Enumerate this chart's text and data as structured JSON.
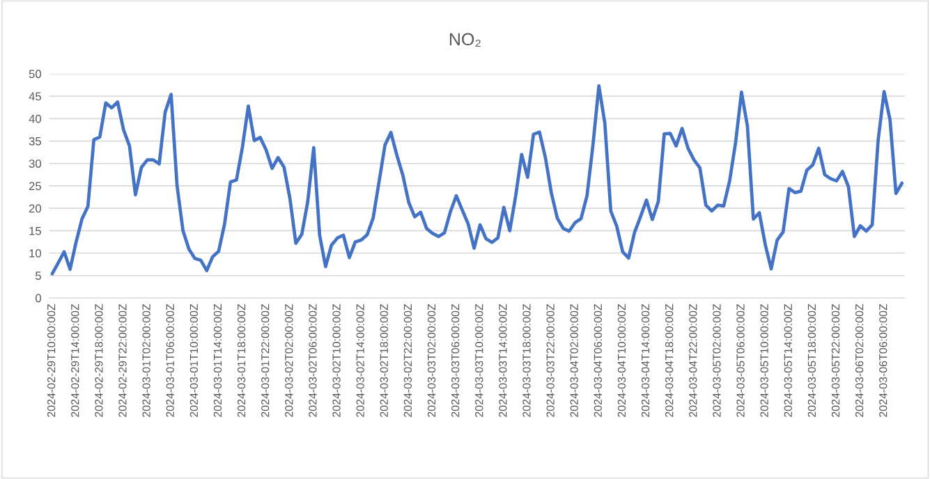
{
  "chart_data": {
    "type": "line",
    "title": "NO₂",
    "categories": [
      "2024-02-29T10:00:00Z",
      null,
      null,
      null,
      "2024-02-29T14:00:00Z",
      null,
      null,
      null,
      "2024-02-29T18:00:00Z",
      null,
      null,
      null,
      "2024-02-29T22:00:00Z",
      null,
      null,
      null,
      "2024-03-01T02:00:00Z",
      null,
      null,
      null,
      "2024-03-01T06:00:00Z",
      null,
      null,
      null,
      "2024-03-01T10:00:00Z",
      null,
      null,
      null,
      "2024-03-01T14:00:00Z",
      null,
      null,
      null,
      "2024-03-01T18:00:00Z",
      null,
      null,
      null,
      "2024-03-01T22:00:00Z",
      null,
      null,
      null,
      "2024-03-02T02:00:00Z",
      null,
      null,
      null,
      "2024-03-02T06:00:00Z",
      null,
      null,
      null,
      "2024-03-02T10:00:00Z",
      null,
      null,
      null,
      "2024-03-02T14:00:00Z",
      null,
      null,
      null,
      "2024-03-02T18:00:00Z",
      null,
      null,
      null,
      "2024-03-02T22:00:00Z",
      null,
      null,
      null,
      "2024-03-03T02:00:00Z",
      null,
      null,
      null,
      "2024-03-03T06:00:00Z",
      null,
      null,
      null,
      "2024-03-03T10:00:00Z",
      null,
      null,
      null,
      "2024-03-03T14:00:00Z",
      null,
      null,
      null,
      "2024-03-03T18:00:00Z",
      null,
      null,
      null,
      "2024-03-03T22:00:00Z",
      null,
      null,
      null,
      "2024-03-04T02:00:00Z",
      null,
      null,
      null,
      "2024-03-04T06:00:00Z",
      null,
      null,
      null,
      "2024-03-04T10:00:00Z",
      null,
      null,
      null,
      "2024-03-04T14:00:00Z",
      null,
      null,
      null,
      "2024-03-04T18:00:00Z",
      null,
      null,
      null,
      "2024-03-04T22:00:00Z",
      null,
      null,
      null,
      "2024-03-05T02:00:00Z",
      null,
      null,
      null,
      "2024-03-05T06:00:00Z",
      null,
      null,
      null,
      "2024-03-05T10:00:00Z",
      null,
      null,
      null,
      "2024-03-05T14:00:00Z",
      null,
      null,
      null,
      "2024-03-05T18:00:00Z",
      null,
      null,
      null,
      "2024-03-05T22:00:00Z",
      null,
      null,
      null,
      "2024-03-06T02:00:00Z",
      null,
      null,
      null,
      "2024-03-06T06:00:00Z",
      null,
      null,
      null
    ],
    "series": [
      {
        "color": "#4472c4",
        "values": [
          5.4,
          7.8,
          10.3,
          6.4,
          12.4,
          17.6,
          20.4,
          35.3,
          35.9,
          43.5,
          42.4,
          43.7,
          37.5,
          33.9,
          23.0,
          29.1,
          30.8,
          30.8,
          29.9,
          41.4,
          45.4,
          25.1,
          15.0,
          10.9,
          8.8,
          8.4,
          6.1,
          9.2,
          10.4,
          16.5,
          25.9,
          26.3,
          33.6,
          42.8,
          35.1,
          35.8,
          33.0,
          28.9,
          31.3,
          29.2,
          22.2,
          12.2,
          14.2,
          21.5,
          33.5,
          14.0,
          7.0,
          11.8,
          13.4,
          14.0,
          9.0,
          12.5,
          12.9,
          14.1,
          17.8,
          25.9,
          34.1,
          36.9,
          31.8,
          27.4,
          21.3,
          18.1,
          19.1,
          15.5,
          14.4,
          13.7,
          14.5,
          19.2,
          22.8,
          19.6,
          16.5,
          11.1,
          16.3,
          13.2,
          12.4,
          13.4,
          20.2,
          15.0,
          22.8,
          32.0,
          26.9,
          36.5,
          37.0,
          31.3,
          23.4,
          17.8,
          15.5,
          14.9,
          16.8,
          17.7,
          22.8,
          34.1,
          47.3,
          39.0,
          19.4,
          16.0,
          10.3,
          8.9,
          14.6,
          18.1,
          21.8,
          17.5,
          21.5,
          36.6,
          36.7,
          33.9,
          37.8,
          33.4,
          30.8,
          29.0,
          20.7,
          19.4,
          20.7,
          20.5,
          26.1,
          34.6,
          45.9,
          38.3,
          17.6,
          19.0,
          11.9,
          6.5,
          12.9,
          14.7,
          24.4,
          23.5,
          23.8,
          28.5,
          29.7,
          33.4,
          27.5,
          26.6,
          26.1,
          28.2,
          24.8,
          13.7,
          16.1,
          14.9,
          16.3,
          35.2,
          46.0,
          39.7,
          23.3,
          25.6
        ]
      }
    ],
    "ylim": [
      0,
      50
    ],
    "yticks": [
      0,
      5,
      10,
      15,
      20,
      25,
      30,
      35,
      40,
      45,
      50
    ],
    "grid": "y",
    "marker": "none",
    "line_style": "solid"
  }
}
